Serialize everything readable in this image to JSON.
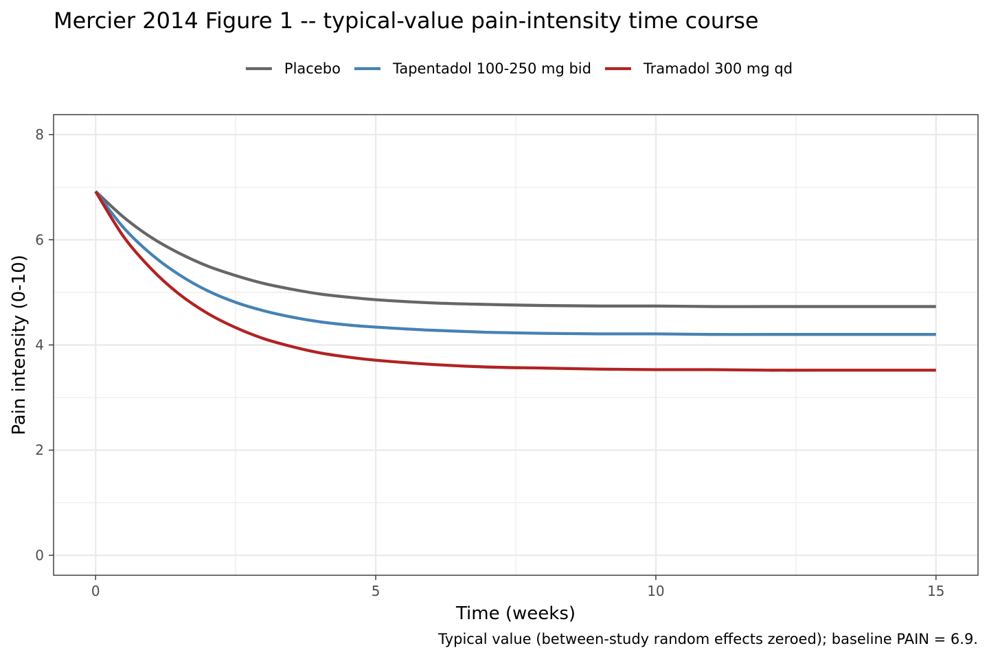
{
  "chart_data": {
    "type": "line",
    "title": "Mercier 2014 Figure 1 -- typical-value pain-intensity time course",
    "caption": "Typical value (between-study random effects zeroed); baseline PAIN = 6.9.",
    "xlabel": "Time (weeks)",
    "ylabel": "Pain intensity (0-10)",
    "xlim": [
      -0.75,
      15.75
    ],
    "ylim": [
      -0.38,
      8.38
    ],
    "xticks": [
      0,
      5,
      10,
      15
    ],
    "yticks": [
      0,
      2,
      4,
      6,
      8
    ],
    "grid": true,
    "legend_position": "top",
    "x": [
      0,
      0.5,
      1,
      1.5,
      2,
      2.5,
      3,
      3.5,
      4,
      4.5,
      5,
      6,
      7,
      8,
      9,
      10,
      11,
      12,
      13,
      14,
      15
    ],
    "series": [
      {
        "name": "Placebo",
        "color": "#666666",
        "values": [
          6.92,
          6.43,
          6.04,
          5.74,
          5.5,
          5.32,
          5.17,
          5.06,
          4.97,
          4.91,
          4.86,
          4.8,
          4.77,
          4.75,
          4.74,
          4.74,
          4.73,
          4.73,
          4.73,
          4.73,
          4.73
        ]
      },
      {
        "name": "Tapentadol 100-250 mg bid",
        "color": "#4682B4",
        "values": [
          6.92,
          6.23,
          5.72,
          5.33,
          5.03,
          4.81,
          4.65,
          4.53,
          4.44,
          4.38,
          4.34,
          4.28,
          4.24,
          4.22,
          4.21,
          4.21,
          4.2,
          4.2,
          4.2,
          4.2,
          4.2
        ]
      },
      {
        "name": "Tramadol 300 mg qd",
        "color": "#B22222",
        "values": [
          6.92,
          6.06,
          5.44,
          4.96,
          4.6,
          4.33,
          4.12,
          3.97,
          3.85,
          3.77,
          3.71,
          3.63,
          3.58,
          3.56,
          3.54,
          3.53,
          3.53,
          3.52,
          3.52,
          3.52,
          3.52
        ]
      }
    ]
  }
}
